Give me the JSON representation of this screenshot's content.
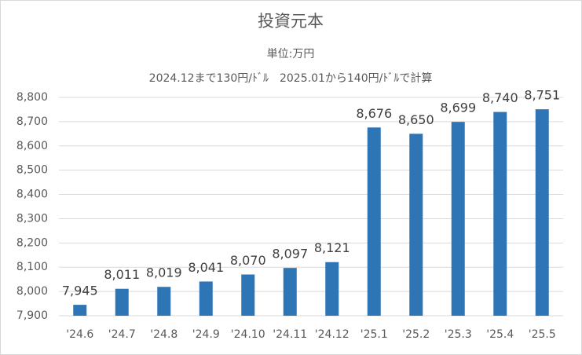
{
  "chart_data": {
    "type": "bar",
    "title": "投資元本",
    "subtitle": "単位:万円",
    "note": "2024.12まで130円/ﾄﾞﾙ　2025.01から140円/ﾄﾞﾙで計算",
    "categories": [
      "'24.6",
      "'24.7",
      "'24.8",
      "'24.9",
      "'24.10",
      "'24.11",
      "'24.12",
      "'25.1",
      "'25.2",
      "'25.3",
      "'25.4",
      "'25.5"
    ],
    "values": [
      7945,
      8011,
      8019,
      8041,
      8070,
      8097,
      8121,
      8676,
      8650,
      8699,
      8740,
      8751
    ],
    "value_labels": [
      "7,945",
      "8,011",
      "8,019",
      "8,041",
      "8,070",
      "8,097",
      "8,121",
      "8,676",
      "8,650",
      "8,699",
      "8,740",
      "8,751"
    ],
    "color": "#2e75b6",
    "ylim": [
      7900,
      8800
    ],
    "yticks": [
      {
        "value": 7900,
        "label": "7,900"
      },
      {
        "value": 8000,
        "label": "8,000"
      },
      {
        "value": 8100,
        "label": "8,100"
      },
      {
        "value": 8200,
        "label": "8,200"
      },
      {
        "value": 8300,
        "label": "8,300"
      },
      {
        "value": 8400,
        "label": "8,400"
      },
      {
        "value": 8500,
        "label": "8,500"
      },
      {
        "value": 8600,
        "label": "8,600"
      },
      {
        "value": 8700,
        "label": "8,700"
      },
      {
        "value": 8800,
        "label": "8,800"
      }
    ],
    "grid": true
  }
}
